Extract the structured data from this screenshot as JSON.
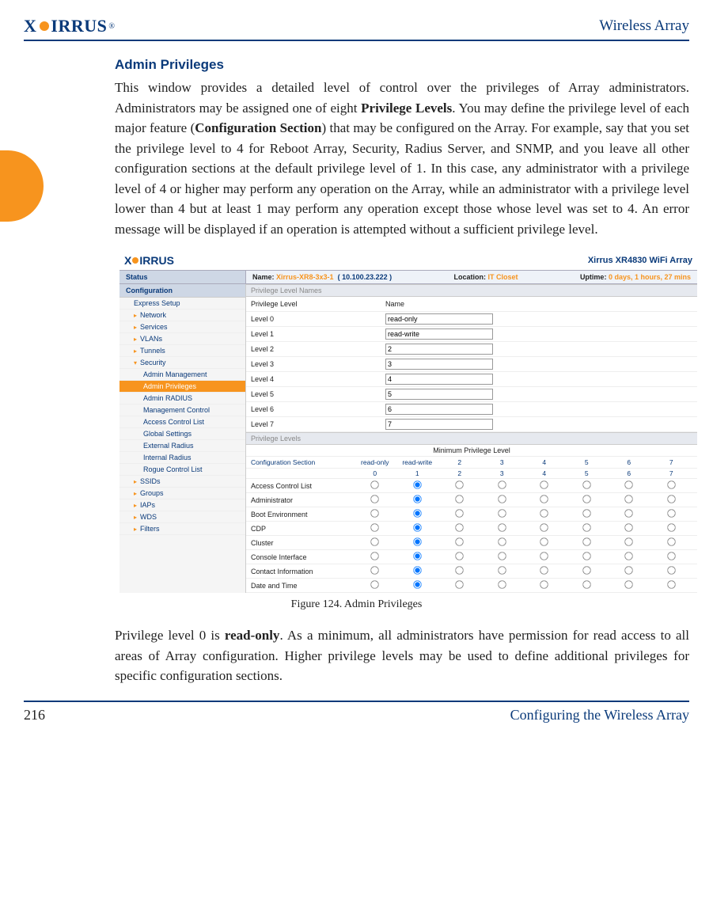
{
  "header": {
    "product": "Wireless Array",
    "logo_text": "XIRRUS"
  },
  "thumb": {
    "color": "#f7941e"
  },
  "section": {
    "title": "Admin Privileges",
    "para1_a": "This window provides a detailed level of control over the privileges of Array administrators. Administrators may be assigned one of eight ",
    "para1_b": "Privilege Levels",
    "para1_c": ". You may define the privilege level of each major feature (",
    "para1_d": "Configuration Section",
    "para1_e": ") that may be configured on the Array. For example, say that you set the privilege level to 4 for Reboot Array, Security, Radius Server, and SNMP, and you leave all other configuration sections at the default privilege level of 1. In this case, any administrator with a privilege level of 4 or higher may perform any operation on the Array, while an administrator with a privilege level lower than 4 but at least 1 may perform any operation except those whose level was set to 4. An error message will be displayed if an operation is attempted without a sufficient privilege level.",
    "para2_a": "Privilege level 0 is ",
    "para2_b": "read-only",
    "para2_c": ". As a minimum, all administrators have permission for read access to all areas of Array configuration. Higher privilege levels may be used to define additional privileges for specific configuration sections."
  },
  "figure": {
    "caption": "Figure 124. Admin Privileges"
  },
  "screenshot": {
    "logo_text": "XIRRUS",
    "title": "Xirrus XR4830 WiFi Array",
    "status": {
      "left": "Status",
      "name_lbl": "Name:",
      "name_val": "Xirrus-XR8-3x3-1",
      "ip": "( 10.100.23.222 )",
      "loc_lbl": "Location:",
      "loc_val": "IT Closet",
      "up_lbl": "Uptime:",
      "up_val": "0 days, 1 hours, 27 mins"
    },
    "nav": {
      "config": "Configuration",
      "items": [
        "Express Setup",
        "Network",
        "Services",
        "VLANs",
        "Tunnels",
        "Security"
      ],
      "security_subs": [
        "Admin Management",
        "Admin Privileges",
        "Admin RADIUS",
        "Management Control",
        "Access Control List",
        "Global Settings",
        "External Radius",
        "Internal Radius",
        "Rogue Control List"
      ],
      "after": [
        "SSIDs",
        "Groups",
        "IAPs",
        "WDS",
        "Filters"
      ]
    },
    "main": {
      "band1": "Privilege Level Names",
      "col_priv": "Privilege Level",
      "col_name": "Name",
      "levels": [
        {
          "label": "Level 0",
          "val": "read-only"
        },
        {
          "label": "Level 1",
          "val": "read-write"
        },
        {
          "label": "Level 2",
          "val": "2"
        },
        {
          "label": "Level 3",
          "val": "3"
        },
        {
          "label": "Level 4",
          "val": "4"
        },
        {
          "label": "Level 5",
          "val": "5"
        },
        {
          "label": "Level 6",
          "val": "6"
        },
        {
          "label": "Level 7",
          "val": "7"
        }
      ],
      "band2": "Privilege Levels",
      "super": "Minimum Privilege Level",
      "cs": "Configuration Section",
      "head_top": [
        "read-only",
        "read-write",
        "2",
        "3",
        "4",
        "5",
        "6",
        "7"
      ],
      "head_bot": [
        "0",
        "1",
        "2",
        "3",
        "4",
        "5",
        "6",
        "7"
      ],
      "rows": [
        "Access Control List",
        "Administrator",
        "Boot Environment",
        "CDP",
        "Cluster",
        "Console Interface",
        "Contact Information",
        "Date and Time"
      ],
      "selected_col": 1
    }
  },
  "footer": {
    "page": "216",
    "section": "Configuring the Wireless Array"
  }
}
